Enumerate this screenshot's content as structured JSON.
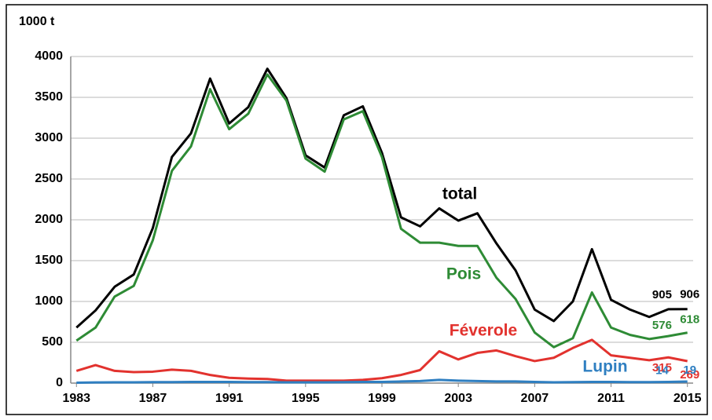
{
  "chart_data": {
    "type": "line",
    "ylabel": "1000 t",
    "x": [
      1983,
      1984,
      1985,
      1986,
      1987,
      1988,
      1989,
      1990,
      1991,
      1992,
      1993,
      1994,
      1995,
      1996,
      1997,
      1998,
      1999,
      2000,
      2001,
      2002,
      2003,
      2004,
      2005,
      2006,
      2007,
      2008,
      2009,
      2010,
      2011,
      2012,
      2013,
      2014,
      2015
    ],
    "xlim": [
      1982.7,
      2015.3
    ],
    "xticks": [
      1983,
      1987,
      1991,
      1995,
      1999,
      2003,
      2007,
      2011,
      2015
    ],
    "ylim": [
      0,
      4000
    ],
    "yticks": [
      0,
      500,
      1000,
      1500,
      2000,
      2500,
      3000,
      3500,
      4000
    ],
    "grid": true,
    "series": [
      {
        "name": "total",
        "color": "#000000",
        "values": [
          680,
          890,
          1180,
          1330,
          1900,
          2770,
          3060,
          3730,
          3180,
          3380,
          3850,
          3490,
          2790,
          2640,
          3280,
          3390,
          2820,
          2030,
          1920,
          2140,
          1990,
          2080,
          1710,
          1380,
          900,
          760,
          1000,
          1640,
          1020,
          900,
          810,
          905,
          906
        ],
        "value_labels": [
          null,
          null,
          null,
          null,
          null,
          null,
          null,
          null,
          null,
          null,
          null,
          null,
          null,
          null,
          null,
          null,
          null,
          null,
          null,
          null,
          null,
          null,
          null,
          null,
          null,
          null,
          null,
          null,
          null,
          null,
          null,
          "905",
          "906"
        ]
      },
      {
        "name": "Pois",
        "color": "#2e8b35",
        "values": [
          520,
          680,
          1060,
          1190,
          1750,
          2600,
          2900,
          3600,
          3110,
          3300,
          3780,
          3460,
          2750,
          2590,
          3230,
          3330,
          2770,
          1890,
          1720,
          1720,
          1680,
          1680,
          1290,
          1030,
          620,
          440,
          550,
          1110,
          680,
          590,
          540,
          576,
          618
        ],
        "value_labels": [
          null,
          null,
          null,
          null,
          null,
          null,
          null,
          null,
          null,
          null,
          null,
          null,
          null,
          null,
          null,
          null,
          null,
          null,
          null,
          null,
          null,
          null,
          null,
          null,
          null,
          null,
          null,
          null,
          null,
          null,
          null,
          "576",
          "618"
        ]
      },
      {
        "name": "Féverole",
        "color": "#e2322e",
        "values": [
          150,
          220,
          150,
          135,
          140,
          165,
          150,
          100,
          65,
          55,
          50,
          30,
          30,
          30,
          30,
          40,
          60,
          100,
          160,
          390,
          290,
          370,
          400,
          330,
          270,
          310,
          430,
          530,
          340,
          310,
          280,
          315,
          269
        ],
        "value_labels": [
          null,
          null,
          null,
          null,
          null,
          null,
          null,
          null,
          null,
          null,
          null,
          null,
          null,
          null,
          null,
          null,
          null,
          null,
          null,
          null,
          null,
          null,
          null,
          null,
          null,
          null,
          null,
          null,
          null,
          null,
          null,
          "315",
          "269"
        ]
      },
      {
        "name": "Lupin",
        "color": "#2f7fc1",
        "values": [
          5,
          8,
          10,
          10,
          12,
          12,
          15,
          15,
          15,
          12,
          12,
          10,
          10,
          10,
          12,
          15,
          15,
          20,
          25,
          40,
          30,
          25,
          20,
          20,
          15,
          10,
          12,
          15,
          15,
          12,
          12,
          14,
          19
        ],
        "value_labels": [
          null,
          null,
          null,
          null,
          null,
          null,
          null,
          null,
          null,
          null,
          null,
          null,
          null,
          null,
          null,
          null,
          null,
          null,
          null,
          null,
          null,
          null,
          null,
          null,
          null,
          null,
          null,
          null,
          null,
          null,
          null,
          "14",
          "19"
        ]
      }
    ]
  }
}
